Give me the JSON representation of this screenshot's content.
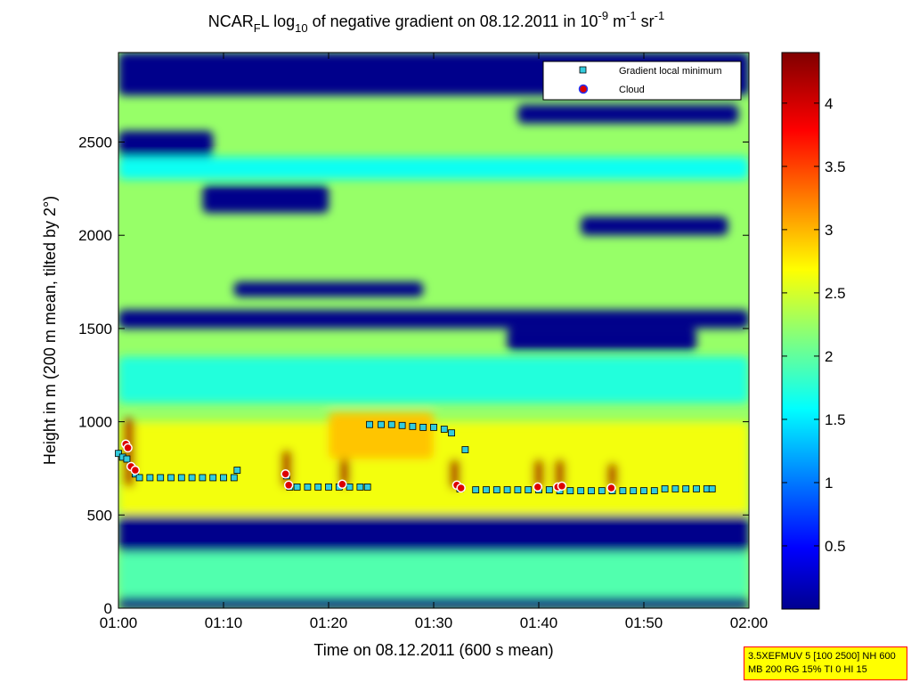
{
  "title": {
    "prefix": "NCAR",
    "sub1": "F",
    "mid": "L log",
    "sub2": "10",
    "rest": " of negative gradient on 08.12.2011 in 10",
    "sup1": "-9",
    "unit1": " m",
    "sup2": "-1",
    "unit2": " sr",
    "sup3": "-1"
  },
  "info_box": {
    "line1": "3.5XEFMUV 5 [100 2500] NH 600",
    "line2": "MB 200 RG 15% TI 0 HI 15"
  },
  "colors": {
    "low": "#00008f",
    "mid_cyan": "#00ffff",
    "mid_yellow": "#ffff00",
    "high": "#800000",
    "marker_min": "#33ccdd",
    "marker_cloud_fill": "#dd0000",
    "marker_cloud_edge": "#0000ff"
  },
  "chart_data": {
    "type": "heatmap",
    "xlabel": "Time on 08.12.2011 (600 s mean)",
    "ylabel": "Height in m (200 m mean, tilted by 2°)",
    "x_unit": "minutes",
    "xlim": [
      0,
      60
    ],
    "ylim": [
      0,
      2980
    ],
    "x_ticks": [
      0,
      10,
      20,
      30,
      40,
      50,
      60
    ],
    "x_tick_labels": [
      "01:00",
      "01:10",
      "01:20",
      "01:30",
      "01:40",
      "01:50",
      "02:00"
    ],
    "y_ticks": [
      0,
      500,
      1000,
      1500,
      2000,
      2500
    ],
    "y_tick_labels": [
      "0",
      "500",
      "1000",
      "1500",
      "2000",
      "2500"
    ],
    "colorbar": {
      "range": [
        0,
        4.4
      ],
      "ticks": [
        0.5,
        1,
        1.5,
        2,
        2.5,
        3,
        3.5,
        4
      ],
      "tick_labels": [
        "0.5",
        "1",
        "1.5",
        "2",
        "2.5",
        "3",
        "3.5",
        "4"
      ],
      "colormap": "jet"
    },
    "legend": {
      "placement": "top-right",
      "entries": [
        "Gradient local minimum",
        "Cloud"
      ]
    },
    "field": {
      "background_value": 2.3,
      "regions": [
        {
          "x": [
            0,
            60
          ],
          "y": [
            2750,
            2980
          ],
          "value": 0.05
        },
        {
          "x": [
            0,
            60
          ],
          "y": [
            0,
            60
          ],
          "value": 0.05
        },
        {
          "x": [
            0,
            60
          ],
          "y": [
            300,
            500
          ],
          "value": 0.05
        },
        {
          "x": [
            0,
            60
          ],
          "y": [
            1500,
            1600
          ],
          "value": 0.05
        },
        {
          "x": [
            8,
            20
          ],
          "y": [
            2120,
            2270
          ],
          "value": 0.05
        },
        {
          "x": [
            37,
            55
          ],
          "y": [
            1380,
            1500
          ],
          "value": 0.05
        },
        {
          "x": [
            11,
            29
          ],
          "y": [
            1670,
            1750
          ],
          "value": 0.05
        },
        {
          "x": [
            44,
            58
          ],
          "y": [
            2000,
            2100
          ],
          "value": 0.05
        },
        {
          "x": [
            0,
            9
          ],
          "y": [
            2420,
            2560
          ],
          "value": 0.05
        },
        {
          "x": [
            38,
            59
          ],
          "y": [
            2600,
            2700
          ],
          "value": 0.05
        },
        {
          "x": [
            0,
            60
          ],
          "y": [
            2300,
            2420
          ],
          "value": 1.7
        },
        {
          "x": [
            0,
            60
          ],
          "y": [
            1100,
            1350
          ],
          "value": 1.8
        },
        {
          "x": [
            0,
            60
          ],
          "y": [
            60,
            300
          ],
          "value": 2.0
        },
        {
          "x": [
            0,
            60
          ],
          "y": [
            500,
            1000
          ],
          "value": 2.7
        },
        {
          "x": [
            20,
            30
          ],
          "y": [
            800,
            1050
          ],
          "value": 3.0
        },
        {
          "x": [
            0.5,
            1.5
          ],
          "y": [
            650,
            1020
          ],
          "value": 4.2
        },
        {
          "x": [
            15.5,
            16.5
          ],
          "y": [
            650,
            850
          ],
          "value": 4.2
        },
        {
          "x": [
            21,
            22
          ],
          "y": [
            650,
            800
          ],
          "value": 4.2
        },
        {
          "x": [
            31.5,
            32.5
          ],
          "y": [
            640,
            800
          ],
          "value": 4.2
        },
        {
          "x": [
            39.5,
            40.5
          ],
          "y": [
            640,
            800
          ],
          "value": 4.2
        },
        {
          "x": [
            41.5,
            42.5
          ],
          "y": [
            640,
            800
          ],
          "value": 4.2
        },
        {
          "x": [
            46.5,
            47.5
          ],
          "y": [
            640,
            780
          ],
          "value": 4.2
        }
      ]
    },
    "series": [
      {
        "name": "Gradient local minimum",
        "marker": "square",
        "points": [
          [
            0.0,
            830
          ],
          [
            0.4,
            810
          ],
          [
            0.8,
            800
          ],
          [
            1.2,
            760
          ],
          [
            1.6,
            720
          ],
          [
            2.0,
            700
          ],
          [
            3.0,
            700
          ],
          [
            4.0,
            700
          ],
          [
            5.0,
            700
          ],
          [
            6.0,
            700
          ],
          [
            7.0,
            700
          ],
          [
            8.0,
            700
          ],
          [
            9.0,
            700
          ],
          [
            10.0,
            700
          ],
          [
            11.0,
            700
          ],
          [
            11.3,
            740
          ],
          [
            16.0,
            710
          ],
          [
            16.3,
            650
          ],
          [
            17.0,
            650
          ],
          [
            18.0,
            650
          ],
          [
            19.0,
            650
          ],
          [
            20.0,
            650
          ],
          [
            21.0,
            650
          ],
          [
            22.0,
            650
          ],
          [
            23.0,
            650
          ],
          [
            23.7,
            650
          ],
          [
            23.9,
            985
          ],
          [
            25.0,
            985
          ],
          [
            26.0,
            985
          ],
          [
            27.0,
            980
          ],
          [
            28.0,
            975
          ],
          [
            29.0,
            970
          ],
          [
            30.0,
            970
          ],
          [
            31.0,
            960
          ],
          [
            31.7,
            940
          ],
          [
            32.5,
            640
          ],
          [
            33.0,
            850
          ],
          [
            34.0,
            635
          ],
          [
            35.0,
            635
          ],
          [
            36.0,
            635
          ],
          [
            37.0,
            635
          ],
          [
            38.0,
            635
          ],
          [
            39.0,
            635
          ],
          [
            40.0,
            635
          ],
          [
            41.0,
            635
          ],
          [
            42.0,
            630
          ],
          [
            43.0,
            630
          ],
          [
            44.0,
            630
          ],
          [
            45.0,
            630
          ],
          [
            46.0,
            630
          ],
          [
            47.0,
            630
          ],
          [
            48.0,
            630
          ],
          [
            49.0,
            630
          ],
          [
            50.0,
            630
          ],
          [
            51.0,
            630
          ],
          [
            52.0,
            640
          ],
          [
            53.0,
            640
          ],
          [
            54.0,
            640
          ],
          [
            55.0,
            640
          ],
          [
            56.0,
            640
          ],
          [
            56.5,
            640
          ]
        ]
      },
      {
        "name": "Cloud",
        "marker": "circle",
        "points": [
          [
            0.7,
            880
          ],
          [
            0.9,
            860
          ],
          [
            1.2,
            760
          ],
          [
            1.6,
            740
          ],
          [
            15.9,
            720
          ],
          [
            16.2,
            660
          ],
          [
            21.3,
            665
          ],
          [
            32.2,
            660
          ],
          [
            32.6,
            645
          ],
          [
            39.9,
            650
          ],
          [
            41.8,
            650
          ],
          [
            42.2,
            655
          ],
          [
            46.9,
            645
          ]
        ]
      }
    ]
  }
}
